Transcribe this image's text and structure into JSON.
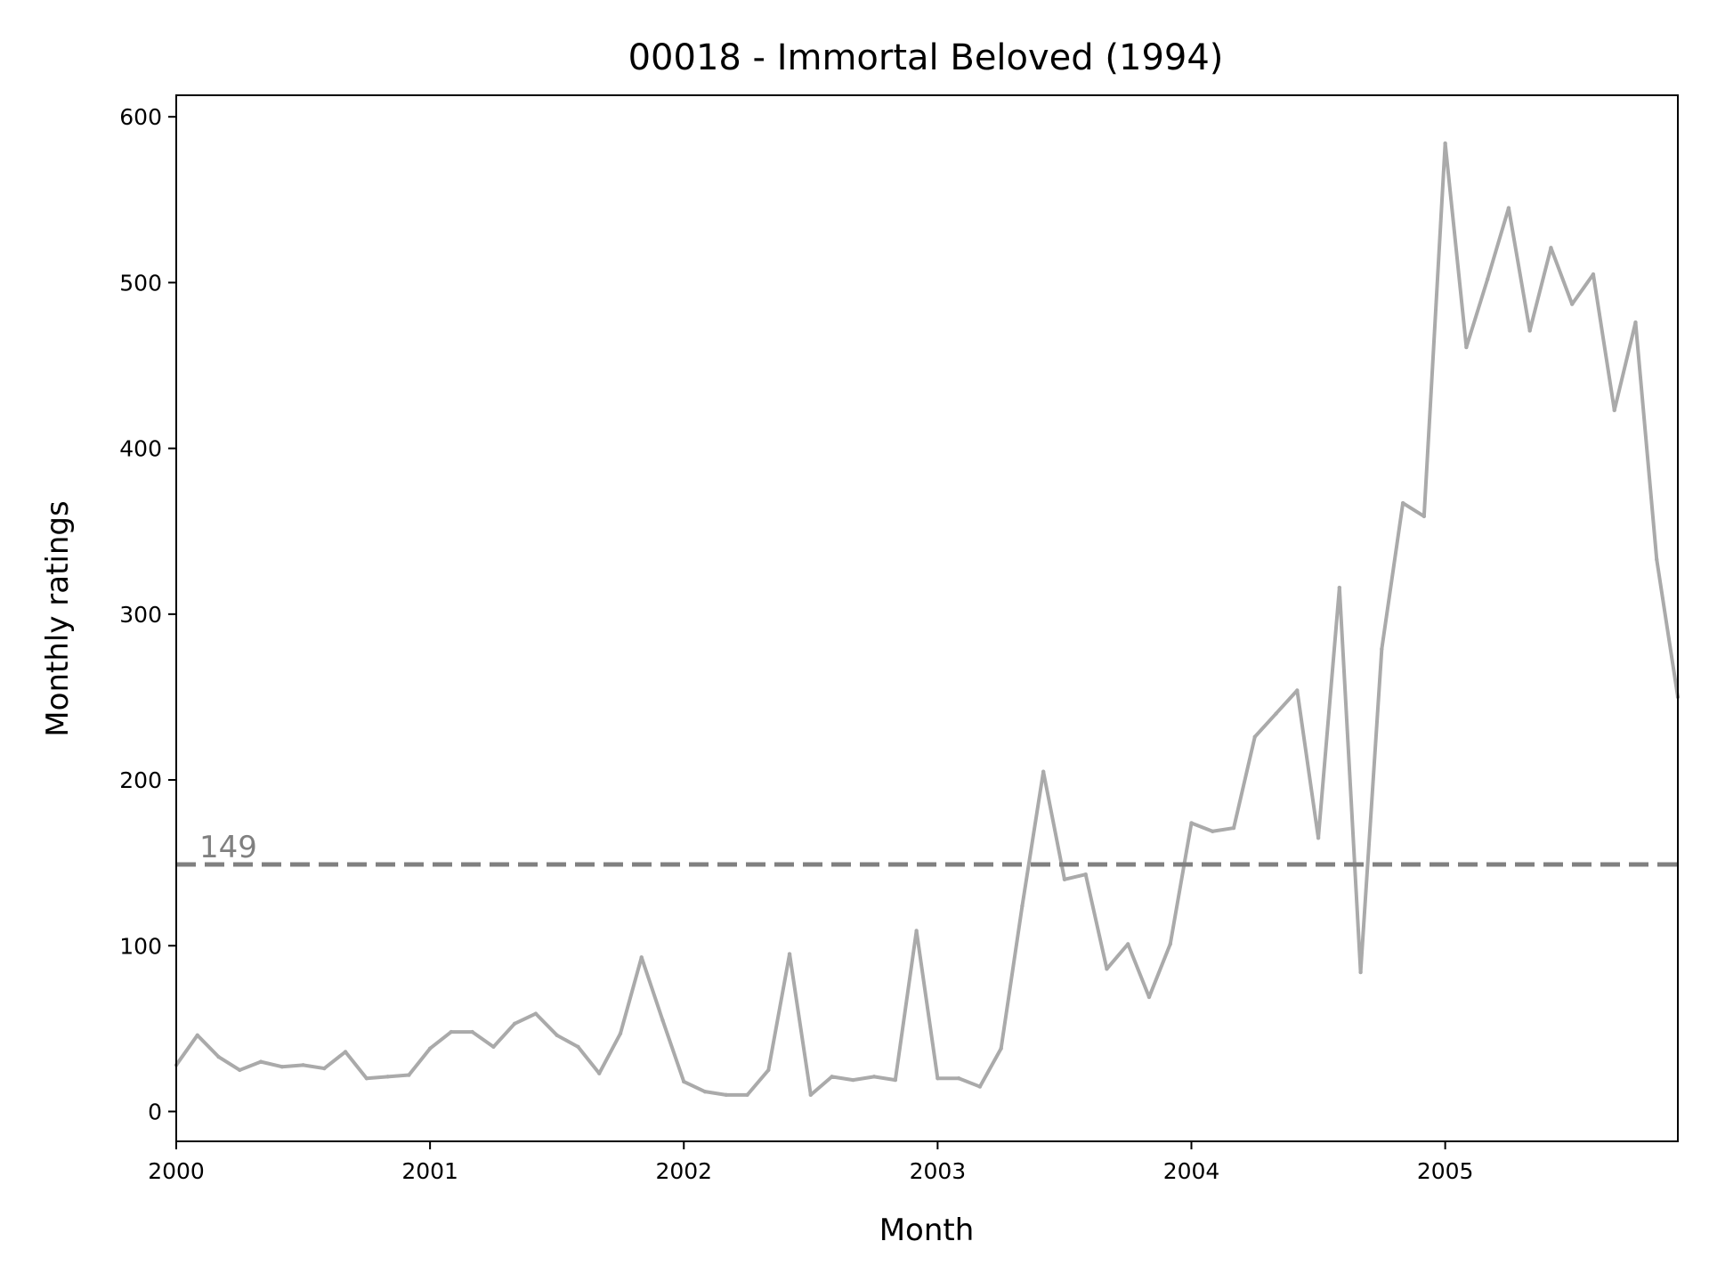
{
  "chart_data": {
    "type": "line",
    "title": "00018 - Immortal Beloved (1994)",
    "xlabel": "Month",
    "ylabel": "Monthly ratings",
    "xlim": [
      "2000-01",
      "2005-12"
    ],
    "ylim": [
      -18,
      613
    ],
    "x_ticks": [
      "2000",
      "2001",
      "2002",
      "2003",
      "2004",
      "2005"
    ],
    "y_ticks": [
      "0",
      "100",
      "200",
      "300",
      "400",
      "500",
      "600"
    ],
    "grid": false,
    "colors": {
      "line": "#aaaaaa",
      "reference": "#808080"
    },
    "reference_line": {
      "value": 149,
      "label": "149",
      "style": "dashed"
    },
    "series": [
      {
        "x": [
          "2000-01",
          "2000-02",
          "2000-03",
          "2000-04",
          "2000-05",
          "2000-06",
          "2000-07",
          "2000-08",
          "2000-09",
          "2000-10",
          "2000-11",
          "2000-12",
          "2001-01",
          "2001-02",
          "2001-03",
          "2001-04",
          "2001-05",
          "2001-06",
          "2001-07",
          "2001-08",
          "2001-09",
          "2001-10",
          "2001-11",
          "2001-12",
          "2002-01",
          "2002-02",
          "2002-03",
          "2002-04",
          "2002-05",
          "2002-06",
          "2002-07",
          "2002-08",
          "2002-09",
          "2002-10",
          "2002-11",
          "2002-12",
          "2003-01",
          "2003-02",
          "2003-03",
          "2003-04",
          "2003-05",
          "2003-06",
          "2003-07",
          "2003-08",
          "2003-09",
          "2003-10",
          "2003-11",
          "2003-12",
          "2004-01",
          "2004-02",
          "2004-03",
          "2004-04",
          "2004-05",
          "2004-06",
          "2004-07",
          "2004-08",
          "2004-09",
          "2004-10",
          "2004-11",
          "2004-12",
          "2005-01",
          "2005-02",
          "2005-03",
          "2005-04",
          "2005-05",
          "2005-06",
          "2005-07",
          "2005-08",
          "2005-09",
          "2005-10",
          "2005-11",
          "2005-12"
        ],
        "values": [
          28,
          46,
          33,
          25,
          30,
          27,
          28,
          26,
          36,
          20,
          21,
          22,
          38,
          48,
          48,
          39,
          53,
          59,
          46,
          39,
          23,
          47,
          93,
          55,
          18,
          12,
          10,
          10,
          25,
          95,
          10,
          21,
          19,
          21,
          19,
          109,
          20,
          20,
          15,
          38,
          124,
          205,
          140,
          143,
          86,
          101,
          69,
          101,
          174,
          169,
          171,
          226,
          240,
          254,
          165,
          316,
          84,
          279,
          367,
          359,
          584,
          461,
          502,
          545,
          471,
          521,
          487,
          505,
          423,
          476,
          333,
          250
        ]
      }
    ]
  }
}
